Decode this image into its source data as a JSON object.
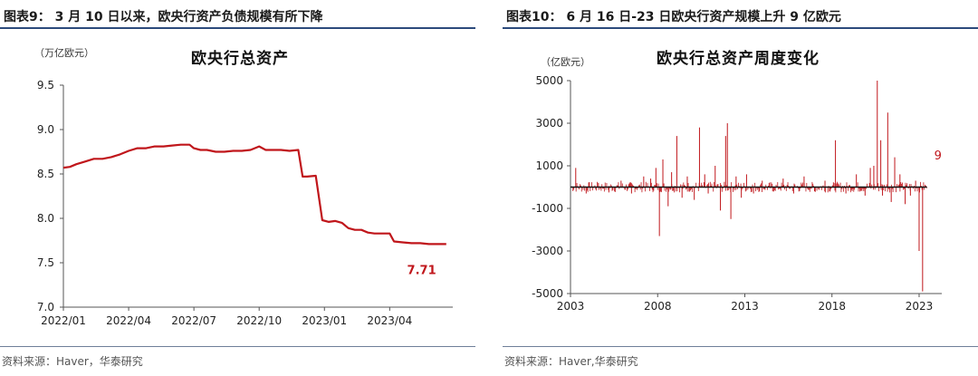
{
  "left": {
    "figure_title": "图表9：  3 月 10 日以来，欧央行资产负债规模有所下降",
    "source": "资料来源：Haver，华泰研究",
    "chart_data": {
      "type": "line",
      "title": "欧央行总资产",
      "unit": "（万亿欧元）",
      "color": "#c0161b",
      "ylim": [
        7.0,
        9.5
      ],
      "yticks": [
        "9.5",
        "9.0",
        "8.5",
        "8.0",
        "7.5",
        "7.0"
      ],
      "ytick_values": [
        9.5,
        9.0,
        8.5,
        8.0,
        7.5,
        7.0
      ],
      "xlim": [
        0,
        17.9
      ],
      "xticks": [
        "2022/01",
        "2022/04",
        "2022/07",
        "2022/10",
        "2023/01",
        "2023/04"
      ],
      "xtick_values": [
        0,
        3,
        6,
        9,
        12,
        15
      ],
      "x": [
        0,
        0.3,
        0.6,
        1.0,
        1.4,
        1.8,
        2.2,
        2.6,
        3.0,
        3.4,
        3.8,
        4.2,
        4.6,
        5.0,
        5.4,
        5.8,
        6.0,
        6.3,
        6.6,
        7.0,
        7.4,
        7.8,
        8.2,
        8.6,
        9.0,
        9.3,
        9.6,
        10.0,
        10.4,
        10.8,
        11.0,
        11.2,
        11.6,
        11.9,
        12.2,
        12.5,
        12.8,
        13.1,
        13.4,
        13.7,
        14.0,
        14.3,
        14.6,
        15.0,
        15.2,
        15.6,
        16.0,
        16.4,
        16.8,
        17.2,
        17.6
      ],
      "y": [
        8.57,
        8.58,
        8.61,
        8.64,
        8.67,
        8.67,
        8.69,
        8.72,
        8.76,
        8.79,
        8.79,
        8.81,
        8.81,
        8.82,
        8.83,
        8.83,
        8.79,
        8.77,
        8.77,
        8.75,
        8.75,
        8.76,
        8.76,
        8.77,
        8.81,
        8.77,
        8.77,
        8.77,
        8.76,
        8.77,
        8.47,
        8.47,
        8.48,
        7.98,
        7.96,
        7.97,
        7.95,
        7.89,
        7.87,
        7.87,
        7.84,
        7.83,
        7.83,
        7.83,
        7.74,
        7.73,
        7.72,
        7.72,
        7.71,
        7.71,
        7.71
      ],
      "annotation": "7.71"
    }
  },
  "right": {
    "figure_title": "图表10：  6 月 16 日-23 日欧央行资产规模上升 9 亿欧元",
    "source": "资料来源：Haver,华泰研究",
    "chart_data": {
      "type": "bar",
      "title": "欧央行总资产周度变化",
      "unit": "（亿欧元）",
      "color": "#c0161b",
      "ylim": [
        -5000,
        5000
      ],
      "yticks": [
        "5000",
        "3000",
        "1000",
        "-1000",
        "-3000",
        "-5000"
      ],
      "ytick_values": [
        5000,
        3000,
        1000,
        -1000,
        -3000,
        -5000
      ],
      "xlim": [
        2003,
        2024.3
      ],
      "xticks": [
        "2003",
        "2008",
        "2013",
        "2018",
        "2023"
      ],
      "xtick_values": [
        2003,
        2008,
        2013,
        2018,
        2023
      ],
      "x": [
        2003.3,
        2003.9,
        2004.6,
        2005.2,
        2005.9,
        2006.5,
        2007.2,
        2007.6,
        2007.9,
        2008.1,
        2008.3,
        2008.6,
        2008.8,
        2009.1,
        2009.4,
        2009.7,
        2010.1,
        2010.4,
        2010.7,
        2010.9,
        2011.3,
        2011.6,
        2011.9,
        2012.0,
        2012.2,
        2012.5,
        2012.8,
        2013.1,
        2013.5,
        2014.0,
        2014.6,
        2015.2,
        2015.8,
        2016.4,
        2017.0,
        2017.6,
        2018.2,
        2018.8,
        2019.4,
        2019.9,
        2020.2,
        2020.4,
        2020.6,
        2020.8,
        2020.9,
        2021.2,
        2021.4,
        2021.6,
        2021.9,
        2022.2,
        2022.5,
        2022.8,
        2023.0,
        2023.2,
        2023.35
      ],
      "values": [
        900,
        -300,
        200,
        -250,
        300,
        -300,
        500,
        400,
        900,
        -2300,
        1300,
        -900,
        700,
        2400,
        -500,
        500,
        -600,
        2800,
        600,
        -300,
        1000,
        -1100,
        2400,
        3000,
        -1500,
        500,
        -500,
        600,
        -300,
        300,
        -200,
        400,
        -300,
        500,
        -200,
        300,
        2200,
        -300,
        600,
        -400,
        900,
        1000,
        5000,
        2200,
        -400,
        3500,
        -700,
        1400,
        600,
        -800,
        -400,
        300,
        -3000,
        -4900,
        9
      ],
      "annotation": "9"
    }
  }
}
